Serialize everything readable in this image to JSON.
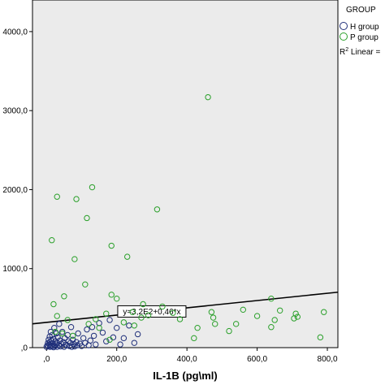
{
  "chart_data": {
    "type": "scatter",
    "title": "",
    "xlabel": "IL-1B (pg\\ml)",
    "ylabel": "",
    "xlim": [
      -40,
      830
    ],
    "ylim": [
      0,
      4400
    ],
    "x_ticks": [
      0,
      200,
      400,
      600,
      800
    ],
    "x_tick_labels": [
      ",0",
      "200,0",
      "400,0",
      "600,0",
      "800,0"
    ],
    "y_ticks": [
      0,
      1000,
      2000,
      3000,
      4000
    ],
    "y_tick_labels": [
      ",0",
      "1000,0",
      "2000,0",
      "3000,0",
      "4000,0"
    ],
    "grid": false,
    "plot_background": "#ebebeb",
    "legend": {
      "title": "GROUP",
      "placement": "right",
      "items": [
        {
          "label": "H group",
          "color": "#1f2f7a"
        },
        {
          "label": "P group",
          "color": "#2aa02a"
        }
      ],
      "fit_label": "R",
      "fit_label_sup": "2",
      "fit_label_suffix": " Linear ="
    },
    "fit_line": {
      "equation": "y=3,2E2+0,46*x",
      "intercept": 320,
      "slope": 0.46,
      "label_x": 300,
      "color": "#000000"
    },
    "series": [
      {
        "name": "H group",
        "color": "#1f2f7a",
        "points": [
          [
            0,
            10
          ],
          [
            2,
            30
          ],
          [
            4,
            60
          ],
          [
            5,
            20
          ],
          [
            6,
            100
          ],
          [
            8,
            40
          ],
          [
            9,
            140
          ],
          [
            10,
            10
          ],
          [
            10,
            70
          ],
          [
            12,
            200
          ],
          [
            13,
            30
          ],
          [
            14,
            90
          ],
          [
            15,
            15
          ],
          [
            16,
            160
          ],
          [
            18,
            50
          ],
          [
            20,
            5
          ],
          [
            20,
            110
          ],
          [
            22,
            250
          ],
          [
            24,
            20
          ],
          [
            25,
            80
          ],
          [
            27,
            40
          ],
          [
            28,
            180
          ],
          [
            30,
            10
          ],
          [
            30,
            60
          ],
          [
            32,
            130
          ],
          [
            35,
            30
          ],
          [
            36,
            300
          ],
          [
            38,
            90
          ],
          [
            40,
            15
          ],
          [
            42,
            50
          ],
          [
            45,
            200
          ],
          [
            48,
            70
          ],
          [
            50,
            10
          ],
          [
            52,
            120
          ],
          [
            55,
            40
          ],
          [
            58,
            30
          ],
          [
            60,
            160
          ],
          [
            62,
            80
          ],
          [
            65,
            20
          ],
          [
            68,
            60
          ],
          [
            70,
            260
          ],
          [
            72,
            10
          ],
          [
            75,
            100
          ],
          [
            78,
            45
          ],
          [
            80,
            15
          ],
          [
            85,
            70
          ],
          [
            88,
            30
          ],
          [
            90,
            180
          ],
          [
            95,
            50
          ],
          [
            100,
            20
          ],
          [
            105,
            120
          ],
          [
            110,
            60
          ],
          [
            115,
            230
          ],
          [
            120,
            30
          ],
          [
            125,
            90
          ],
          [
            130,
            260
          ],
          [
            135,
            150
          ],
          [
            140,
            40
          ],
          [
            150,
            310
          ],
          [
            160,
            190
          ],
          [
            170,
            80
          ],
          [
            180,
            350
          ],
          [
            190,
            130
          ],
          [
            200,
            250
          ],
          [
            210,
            40
          ],
          [
            220,
            120
          ],
          [
            235,
            280
          ],
          [
            250,
            60
          ],
          [
            260,
            170
          ]
        ]
      },
      {
        "name": "P group",
        "color": "#2aa02a",
        "points": [
          [
            460,
            3170
          ],
          [
            30,
            1910
          ],
          [
            85,
            1880
          ],
          [
            130,
            2030
          ],
          [
            115,
            1640
          ],
          [
            315,
            1750
          ],
          [
            15,
            1360
          ],
          [
            185,
            1290
          ],
          [
            230,
            1150
          ],
          [
            80,
            1120
          ],
          [
            110,
            800
          ],
          [
            50,
            650
          ],
          [
            185,
            670
          ],
          [
            200,
            620
          ],
          [
            330,
            520
          ],
          [
            275,
            550
          ],
          [
            640,
            620
          ],
          [
            170,
            430
          ],
          [
            245,
            450
          ],
          [
            290,
            410
          ],
          [
            360,
            440
          ],
          [
            380,
            360
          ],
          [
            470,
            450
          ],
          [
            475,
            380
          ],
          [
            560,
            480
          ],
          [
            600,
            400
          ],
          [
            665,
            470
          ],
          [
            710,
            430
          ],
          [
            715,
            390
          ],
          [
            790,
            450
          ],
          [
            705,
            370
          ],
          [
            30,
            400
          ],
          [
            60,
            350
          ],
          [
            120,
            300
          ],
          [
            150,
            250
          ],
          [
            220,
            320
          ],
          [
            250,
            280
          ],
          [
            420,
            120
          ],
          [
            430,
            250
          ],
          [
            480,
            300
          ],
          [
            520,
            210
          ],
          [
            540,
            300
          ],
          [
            640,
            260
          ],
          [
            650,
            350
          ],
          [
            780,
            130
          ],
          [
            25,
            200
          ],
          [
            75,
            150
          ],
          [
            180,
            100
          ],
          [
            270,
            380
          ],
          [
            140,
            360
          ],
          [
            20,
            550
          ],
          [
            45,
            180
          ]
        ]
      }
    ]
  }
}
